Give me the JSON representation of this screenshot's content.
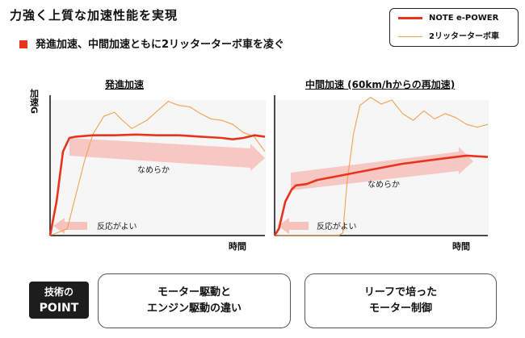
{
  "header": {
    "title": "力強く上質な加速性能を実現",
    "subtitle": "発進加速、中間加速ともに2リッターターボ車を凌ぐ"
  },
  "legend": {
    "items": [
      {
        "label": "NOTE e-POWER",
        "color": "#e8341c"
      },
      {
        "label": "2リッターターボ車",
        "color": "#f2a150"
      }
    ]
  },
  "chart_data": [
    {
      "type": "line",
      "title": "発進加速",
      "xlabel": "時間",
      "ylabel": "加速G",
      "grid": false,
      "annotations": {
        "smooth": "なめらか",
        "response": "反応がよい"
      },
      "series": [
        {
          "name": "NOTE e-POWER",
          "color": "#e8341c",
          "x": [
            0,
            0.03,
            0.06,
            0.09,
            0.12,
            0.2,
            0.3,
            0.4,
            0.5,
            0.6,
            0.7,
            0.8,
            0.85,
            0.9,
            0.95,
            1.0
          ],
          "y": [
            0,
            0.25,
            0.62,
            0.72,
            0.73,
            0.74,
            0.74,
            0.745,
            0.74,
            0.74,
            0.73,
            0.72,
            0.71,
            0.72,
            0.74,
            0.73
          ]
        },
        {
          "name": "2リッターターボ車",
          "color": "#f2a150",
          "x": [
            0,
            0.08,
            0.12,
            0.16,
            0.2,
            0.25,
            0.3,
            0.33,
            0.38,
            0.45,
            0.5,
            0.55,
            0.6,
            0.65,
            0.7,
            0.75,
            0.8,
            0.85,
            0.9,
            0.95,
            1.0
          ],
          "y": [
            0,
            0.05,
            0.3,
            0.55,
            0.75,
            0.88,
            0.91,
            0.86,
            0.79,
            0.85,
            0.92,
            0.99,
            0.96,
            0.95,
            0.9,
            0.86,
            0.85,
            0.82,
            0.76,
            0.73,
            0.62
          ]
        }
      ]
    },
    {
      "type": "line",
      "title": "中間加速 (60km/hからの再加速)",
      "xlabel": "時間",
      "ylabel": "加速G",
      "grid": false,
      "annotations": {
        "smooth": "なめらか",
        "response": "反応がよい"
      },
      "series": [
        {
          "name": "NOTE e-POWER",
          "color": "#e8341c",
          "x": [
            0,
            0.02,
            0.05,
            0.08,
            0.1,
            0.15,
            0.2,
            0.3,
            0.4,
            0.5,
            0.6,
            0.7,
            0.8,
            0.9,
            1.0
          ],
          "y": [
            0,
            0.05,
            0.25,
            0.34,
            0.37,
            0.38,
            0.41,
            0.44,
            0.47,
            0.5,
            0.53,
            0.55,
            0.57,
            0.59,
            0.58
          ]
        },
        {
          "name": "2リッターターボ車",
          "color": "#f2a150",
          "x": [
            0,
            0.3,
            0.32,
            0.34,
            0.37,
            0.4,
            0.45,
            0.5,
            0.55,
            0.6,
            0.65,
            0.7,
            0.75,
            0.8,
            0.85,
            0.9,
            0.95,
            1.0
          ],
          "y": [
            0,
            0,
            0.02,
            0.4,
            0.75,
            0.96,
            1.02,
            0.97,
            1.0,
            0.9,
            0.85,
            0.92,
            0.86,
            0.9,
            0.87,
            0.82,
            0.8,
            0.82
          ]
        }
      ]
    }
  ],
  "footer": {
    "badge_line1": "技術の",
    "badge_line2": "POINT",
    "box1_line1": "モーター駆動と",
    "box1_line2": "エンジン駆動の違い",
    "box2_line1": "リーフで培った",
    "box2_line2": "モーター制御"
  }
}
